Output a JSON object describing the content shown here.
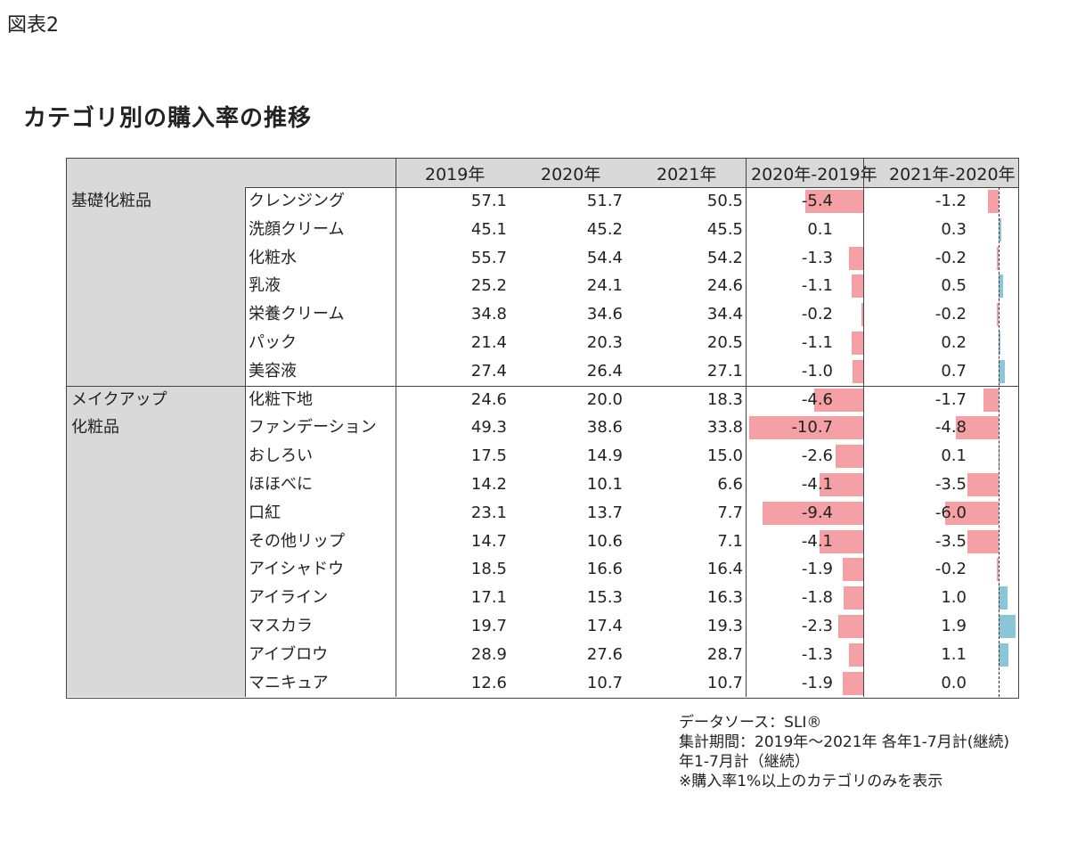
{
  "figure_label": "図表2",
  "title": "カテゴリ別の購入率の推移",
  "chart_data": {
    "type": "table",
    "columns": [
      "2019年",
      "2020年",
      "2021年",
      "2020年-2019年",
      "2021年-2020年"
    ],
    "bar_colors": {
      "negative": "#f4a0a4",
      "positive": "#8ac6d6"
    },
    "groups": [
      {
        "name": "基礎化粧品",
        "rows": [
          {
            "label": "クレンジング",
            "v2019": "57.1",
            "v2020": "51.7",
            "v2021": "50.5",
            "d1": "-5.4",
            "d2": "-1.2"
          },
          {
            "label": "洗顔クリーム",
            "v2019": "45.1",
            "v2020": "45.2",
            "v2021": "45.5",
            "d1": "0.1",
            "d2": "0.3"
          },
          {
            "label": "化粧水",
            "v2019": "55.7",
            "v2020": "54.4",
            "v2021": "54.2",
            "d1": "-1.3",
            "d2": "-0.2"
          },
          {
            "label": "乳液",
            "v2019": "25.2",
            "v2020": "24.1",
            "v2021": "24.6",
            "d1": "-1.1",
            "d2": "0.5"
          },
          {
            "label": "栄養クリーム",
            "v2019": "34.8",
            "v2020": "34.6",
            "v2021": "34.4",
            "d1": "-0.2",
            "d2": "-0.2"
          },
          {
            "label": "パック",
            "v2019": "21.4",
            "v2020": "20.3",
            "v2021": "20.5",
            "d1": "-1.1",
            "d2": "0.2"
          },
          {
            "label": "美容液",
            "v2019": "27.4",
            "v2020": "26.4",
            "v2021": "27.1",
            "d1": "-1.0",
            "d2": "0.7"
          }
        ]
      },
      {
        "name": "メイクアップ\n化粧品",
        "rows": [
          {
            "label": "化粧下地",
            "v2019": "24.6",
            "v2020": "20.0",
            "v2021": "18.3",
            "d1": "-4.6",
            "d2": "-1.7"
          },
          {
            "label": "ファンデーション",
            "v2019": "49.3",
            "v2020": "38.6",
            "v2021": "33.8",
            "d1": "-10.7",
            "d2": "-4.8"
          },
          {
            "label": "おしろい",
            "v2019": "17.5",
            "v2020": "14.9",
            "v2021": "15.0",
            "d1": "-2.6",
            "d2": "0.1"
          },
          {
            "label": "ほほべに",
            "v2019": "14.2",
            "v2020": "10.1",
            "v2021": "6.6",
            "d1": "-4.1",
            "d2": "-3.5"
          },
          {
            "label": "口紅",
            "v2019": "23.1",
            "v2020": "13.7",
            "v2021": "7.7",
            "d1": "-9.4",
            "d2": "-6.0"
          },
          {
            "label": "その他リップ",
            "v2019": "14.7",
            "v2020": "10.6",
            "v2021": "7.1",
            "d1": "-4.1",
            "d2": "-3.5"
          },
          {
            "label": "アイシャドウ",
            "v2019": "18.5",
            "v2020": "16.6",
            "v2021": "16.4",
            "d1": "-1.9",
            "d2": "-0.2"
          },
          {
            "label": "アイライン",
            "v2019": "17.1",
            "v2020": "15.3",
            "v2021": "16.3",
            "d1": "-1.8",
            "d2": "1.0"
          },
          {
            "label": "マスカラ",
            "v2019": "19.7",
            "v2020": "17.4",
            "v2021": "19.3",
            "d1": "-2.3",
            "d2": "1.9"
          },
          {
            "label": "アイブロウ",
            "v2019": "28.9",
            "v2020": "27.6",
            "v2021": "28.7",
            "d1": "-1.3",
            "d2": "1.1"
          },
          {
            "label": "マニキュア",
            "v2019": "12.6",
            "v2020": "10.7",
            "v2021": "10.7",
            "d1": "-1.9",
            "d2": "0.0"
          }
        ]
      }
    ]
  },
  "notes": [
    "データソース：SLI®",
    "集計期間：2019年～2021年 各年1-7月計(継続)",
    "年1-7月計（継続）",
    "※購入率1%以上のカテゴリのみを表示"
  ]
}
